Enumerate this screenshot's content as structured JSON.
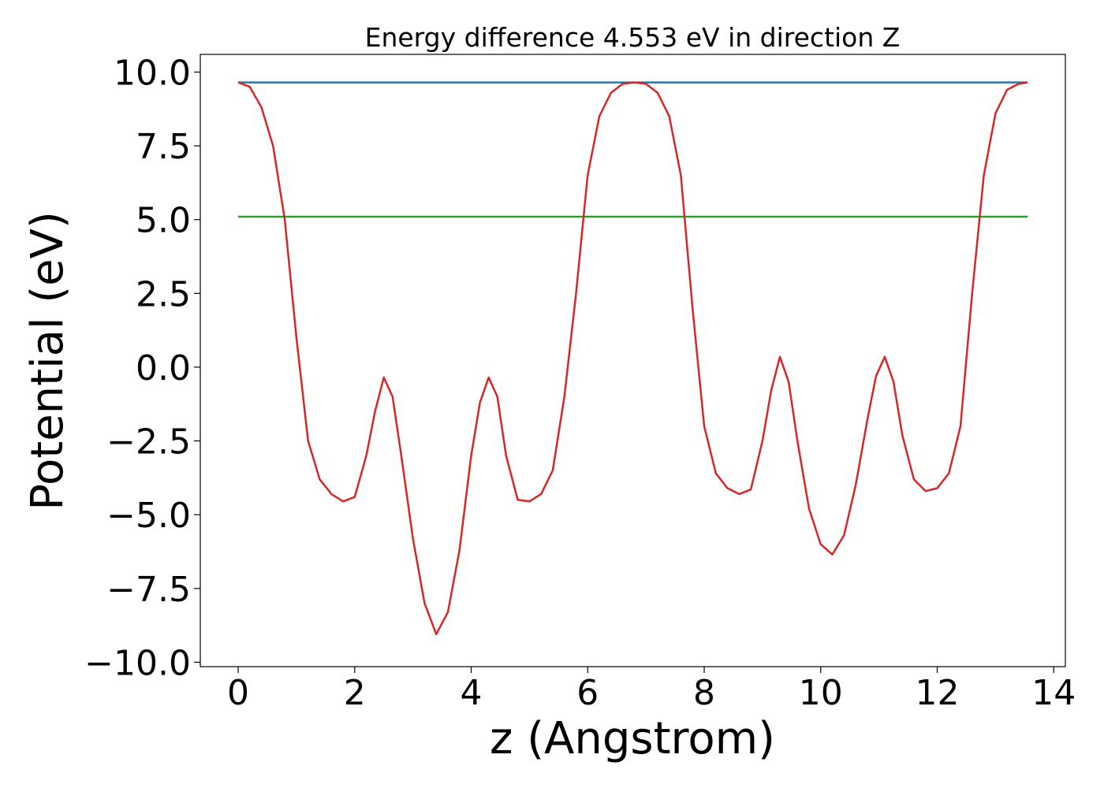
{
  "chart_data": {
    "type": "line",
    "title": "Energy difference 4.553 eV in direction Z",
    "xlabel": "z (Angstrom)",
    "ylabel": "Potential (eV)",
    "xlim": [
      -0.65,
      14.2
    ],
    "ylim": [
      -10.15,
      10.6
    ],
    "xticks": [
      0,
      2,
      4,
      6,
      8,
      10,
      12,
      14
    ],
    "yticks": [
      10.0,
      7.5,
      5.0,
      2.5,
      0.0,
      -2.5,
      -5.0,
      -7.5,
      -10.0
    ],
    "xtick_labels": [
      "0",
      "2",
      "4",
      "6",
      "8",
      "10",
      "12",
      "14"
    ],
    "ytick_labels": [
      "10.0",
      "7.5",
      "5.0",
      "2.5",
      "0.0",
      "−2.5",
      "−5.0",
      "−7.5",
      "−10.0"
    ],
    "grid": false,
    "series": [
      {
        "color": "#d62728",
        "x": [
          0.0,
          0.2,
          0.4,
          0.6,
          0.8,
          1.0,
          1.2,
          1.4,
          1.6,
          1.8,
          2.0,
          2.2,
          2.35,
          2.5,
          2.65,
          2.8,
          3.0,
          3.2,
          3.4,
          3.6,
          3.8,
          4.0,
          4.15,
          4.3,
          4.45,
          4.6,
          4.8,
          5.0,
          5.2,
          5.4,
          5.6,
          5.8,
          6.0,
          6.2,
          6.4,
          6.6,
          6.8,
          7.0,
          7.2,
          7.4,
          7.6,
          7.8,
          8.0,
          8.2,
          8.4,
          8.6,
          8.8,
          9.0,
          9.15,
          9.3,
          9.45,
          9.6,
          9.8,
          10.0,
          10.2,
          10.4,
          10.6,
          10.8,
          10.95,
          11.1,
          11.25,
          11.4,
          11.6,
          11.8,
          12.0,
          12.2,
          12.4,
          12.6,
          12.8,
          13.0,
          13.2,
          13.4,
          13.55
        ],
        "y": [
          9.65,
          9.5,
          8.8,
          7.5,
          5.0,
          1.0,
          -2.5,
          -3.8,
          -4.3,
          -4.55,
          -4.4,
          -3.0,
          -1.5,
          -0.35,
          -1.0,
          -3.0,
          -5.8,
          -8.0,
          -9.05,
          -8.3,
          -6.2,
          -3.0,
          -1.2,
          -0.35,
          -1.0,
          -3.0,
          -4.5,
          -4.55,
          -4.3,
          -3.5,
          -1.0,
          2.5,
          6.5,
          8.5,
          9.3,
          9.6,
          9.65,
          9.6,
          9.3,
          8.5,
          6.5,
          2.0,
          -2.0,
          -3.6,
          -4.1,
          -4.3,
          -4.15,
          -2.5,
          -0.8,
          0.35,
          -0.5,
          -2.5,
          -4.8,
          -6.0,
          -6.35,
          -5.7,
          -4.0,
          -1.8,
          -0.3,
          0.35,
          -0.5,
          -2.3,
          -3.8,
          -4.2,
          -4.1,
          -3.6,
          -2.0,
          2.5,
          6.5,
          8.6,
          9.4,
          9.6,
          9.65
        ]
      },
      {
        "color": "#1f77b4",
        "x": [
          0.0,
          13.55
        ],
        "y": [
          9.65,
          9.65
        ]
      },
      {
        "color": "#2ca02c",
        "x": [
          0.0,
          13.55
        ],
        "y": [
          5.1,
          5.1
        ]
      }
    ]
  }
}
